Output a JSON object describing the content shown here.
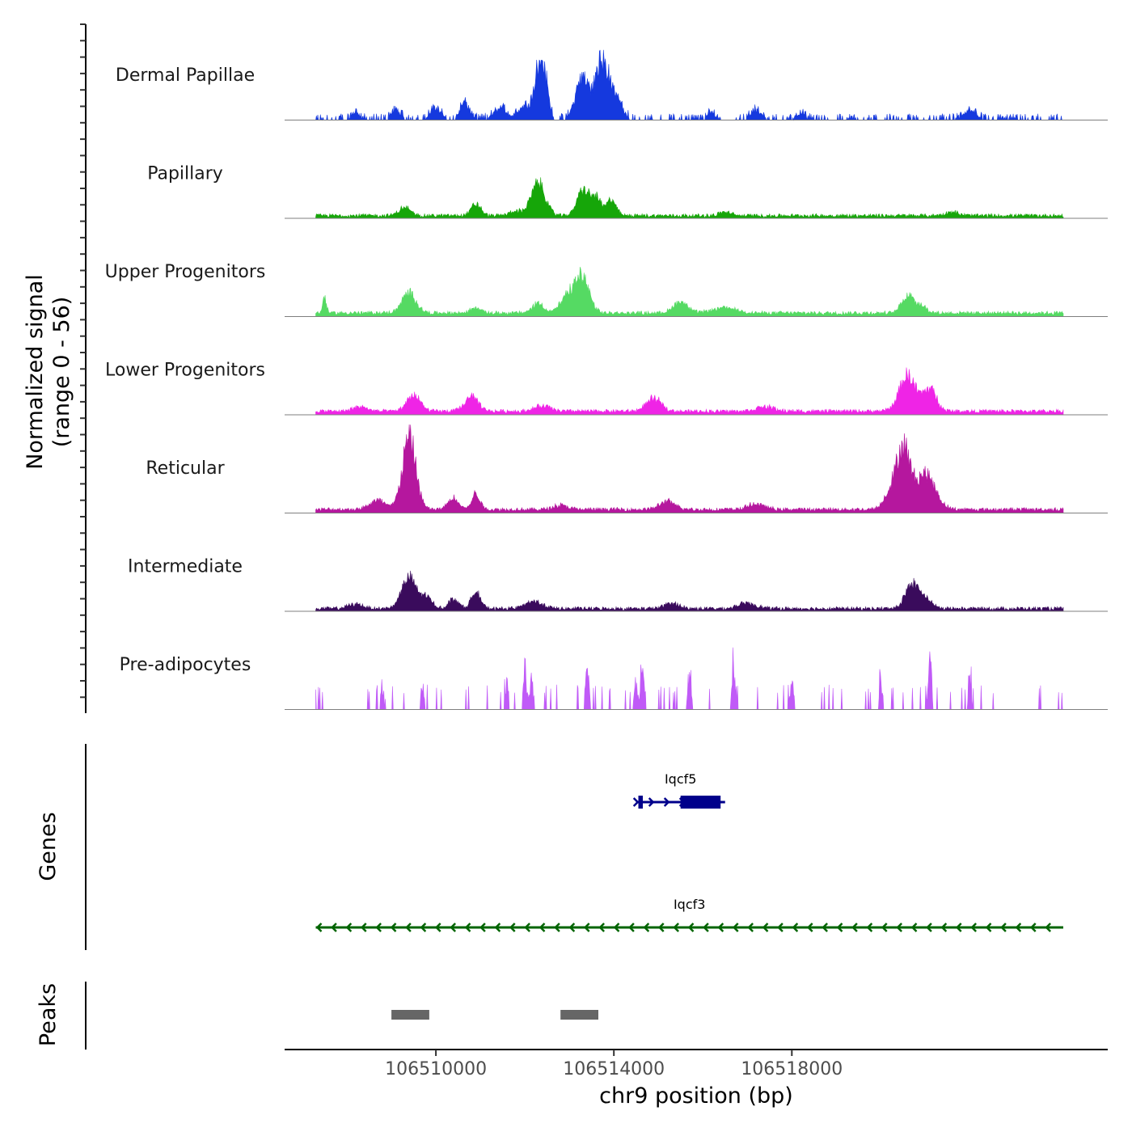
{
  "chart_data": {
    "type": "area",
    "chromosome": "chr9",
    "xlabel": "chr9 position (bp)",
    "xlim": [
      106506600,
      106525100
    ],
    "x_ticks": [
      106510000,
      106514000,
      106518000
    ],
    "x_tick_labels": [
      "106510000",
      "106514000",
      "106518000"
    ],
    "signal_axis_title": [
      "Normalized signal",
      "(range 0 - 56)"
    ],
    "signal_range": [
      0,
      56
    ],
    "genes_axis_title": "Genes",
    "peaks_axis_title": "Peaks",
    "tracks": [
      {
        "name": "Dermal Papillae",
        "color": "#1539DE",
        "style": "gappy",
        "baseline": 0,
        "peaks": [
          {
            "pos": 106512300,
            "height": 50,
            "width": 100
          },
          {
            "pos": 106512450,
            "height": 38,
            "width": 90
          },
          {
            "pos": 106513300,
            "height": 50,
            "width": 150
          },
          {
            "pos": 106513700,
            "height": 53,
            "width": 120
          },
          {
            "pos": 106513950,
            "height": 34,
            "width": 180
          },
          {
            "pos": 106512000,
            "height": 15,
            "width": 140
          },
          {
            "pos": 106511450,
            "height": 12,
            "width": 160
          },
          {
            "pos": 106510000,
            "height": 13,
            "width": 120
          },
          {
            "pos": 106510650,
            "height": 18,
            "width": 110
          },
          {
            "pos": 106508200,
            "height": 8,
            "width": 90
          },
          {
            "pos": 106509100,
            "height": 10,
            "width": 110
          },
          {
            "pos": 106516200,
            "height": 7,
            "width": 90
          },
          {
            "pos": 106517200,
            "height": 10,
            "width": 120
          },
          {
            "pos": 106518200,
            "height": 8,
            "width": 100
          },
          {
            "pos": 106522000,
            "height": 10,
            "width": 140
          }
        ]
      },
      {
        "name": "Papillary",
        "color": "#16A609",
        "style": "continuous",
        "baseline": 1,
        "peaks": [
          {
            "pos": 106512300,
            "height": 36,
            "width": 160
          },
          {
            "pos": 106513300,
            "height": 28,
            "width": 130
          },
          {
            "pos": 106513600,
            "height": 20,
            "width": 120
          },
          {
            "pos": 106513950,
            "height": 18,
            "width": 100
          },
          {
            "pos": 106510900,
            "height": 13,
            "width": 110
          },
          {
            "pos": 106509300,
            "height": 9,
            "width": 130
          },
          {
            "pos": 106511800,
            "height": 5,
            "width": 140
          },
          {
            "pos": 106516500,
            "height": 4,
            "width": 130
          },
          {
            "pos": 106521600,
            "height": 4,
            "width": 150
          }
        ]
      },
      {
        "name": "Upper Progenitors",
        "color": "#55DA63",
        "style": "continuous",
        "baseline": 2,
        "peaks": [
          {
            "pos": 106513300,
            "height": 36,
            "width": 150
          },
          {
            "pos": 106513000,
            "height": 20,
            "width": 180
          },
          {
            "pos": 106509400,
            "height": 22,
            "width": 160
          },
          {
            "pos": 106507500,
            "height": 18,
            "width": 40
          },
          {
            "pos": 106512300,
            "height": 11,
            "width": 130
          },
          {
            "pos": 106515500,
            "height": 13,
            "width": 160
          },
          {
            "pos": 106520600,
            "height": 20,
            "width": 130
          },
          {
            "pos": 106520900,
            "height": 9,
            "width": 120
          },
          {
            "pos": 106516500,
            "height": 6,
            "width": 260
          },
          {
            "pos": 106510900,
            "height": 6,
            "width": 120
          }
        ]
      },
      {
        "name": "Lower Progenitors",
        "color": "#EF24E6",
        "style": "continuous",
        "baseline": 2,
        "peaks": [
          {
            "pos": 106520600,
            "height": 40,
            "width": 180
          },
          {
            "pos": 106521100,
            "height": 25,
            "width": 150
          },
          {
            "pos": 106509500,
            "height": 18,
            "width": 150
          },
          {
            "pos": 106510800,
            "height": 16,
            "width": 150
          },
          {
            "pos": 106514900,
            "height": 14,
            "width": 170
          },
          {
            "pos": 106508300,
            "height": 5,
            "width": 160
          },
          {
            "pos": 106512400,
            "height": 6,
            "width": 180
          },
          {
            "pos": 106517400,
            "height": 5,
            "width": 200
          }
        ]
      },
      {
        "name": "Reticular",
        "color": "#B5179E",
        "style": "continuous",
        "baseline": 2,
        "peaks": [
          {
            "pos": 106509400,
            "height": 80,
            "width": 150
          },
          {
            "pos": 106520500,
            "height": 68,
            "width": 150
          },
          {
            "pos": 106521000,
            "height": 40,
            "width": 220
          },
          {
            "pos": 106520200,
            "height": 17,
            "width": 140
          },
          {
            "pos": 106510900,
            "height": 18,
            "width": 90
          },
          {
            "pos": 106510400,
            "height": 13,
            "width": 120
          },
          {
            "pos": 106508700,
            "height": 10,
            "width": 190
          },
          {
            "pos": 106515200,
            "height": 9,
            "width": 170
          },
          {
            "pos": 106517200,
            "height": 6,
            "width": 190
          },
          {
            "pos": 106512800,
            "height": 5,
            "width": 160
          }
        ]
      },
      {
        "name": "Intermediate",
        "color": "#3A0B5C",
        "style": "continuous",
        "baseline": 1,
        "peaks": [
          {
            "pos": 106509400,
            "height": 34,
            "width": 170
          },
          {
            "pos": 106509800,
            "height": 12,
            "width": 120
          },
          {
            "pos": 106510900,
            "height": 20,
            "width": 100
          },
          {
            "pos": 106510400,
            "height": 11,
            "width": 110
          },
          {
            "pos": 106520700,
            "height": 27,
            "width": 150
          },
          {
            "pos": 106521000,
            "height": 10,
            "width": 150
          },
          {
            "pos": 106512200,
            "height": 8,
            "width": 190
          },
          {
            "pos": 106515300,
            "height": 6,
            "width": 160
          },
          {
            "pos": 106517000,
            "height": 6,
            "width": 200
          },
          {
            "pos": 106508200,
            "height": 5,
            "width": 170
          }
        ]
      },
      {
        "name": "Pre-adipocytes",
        "color": "#C05AF7",
        "style": "spiky",
        "baseline": 0,
        "peaks": [
          {
            "pos": 106521100,
            "height": 60,
            "width": 40
          },
          {
            "pos": 106512000,
            "height": 46,
            "width": 40
          },
          {
            "pos": 106514650,
            "height": 47,
            "width": 40
          },
          {
            "pos": 106516700,
            "height": 46,
            "width": 40
          },
          {
            "pos": 106513400,
            "height": 45,
            "width": 40
          },
          {
            "pos": 106512150,
            "height": 35,
            "width": 40
          },
          {
            "pos": 106514500,
            "height": 30,
            "width": 40
          },
          {
            "pos": 106515700,
            "height": 30,
            "width": 40
          },
          {
            "pos": 106520000,
            "height": 32,
            "width": 40
          },
          {
            "pos": 106522000,
            "height": 30,
            "width": 40
          },
          {
            "pos": 106509700,
            "height": 30,
            "width": 40
          },
          {
            "pos": 106508800,
            "height": 30,
            "width": 40
          },
          {
            "pos": 106511600,
            "height": 30,
            "width": 40
          },
          {
            "pos": 106518000,
            "height": 30,
            "width": 40
          }
        ]
      }
    ],
    "genes": [
      {
        "name": "Iqcf5",
        "start": 106514500,
        "end": 106516500,
        "strand": "+",
        "color": "#00008B",
        "exons": [
          [
            106514550,
            106514650
          ],
          [
            106515500,
            106516400
          ]
        ]
      },
      {
        "name": "Iqcf3",
        "start": 106507300,
        "end": 106524100,
        "strand": "-",
        "color": "#006400",
        "exons": []
      }
    ],
    "peaks": [
      {
        "start": 106509000,
        "end": 106509850,
        "color": "#666666"
      },
      {
        "start": 106512800,
        "end": 106513650,
        "color": "#666666"
      }
    ]
  }
}
